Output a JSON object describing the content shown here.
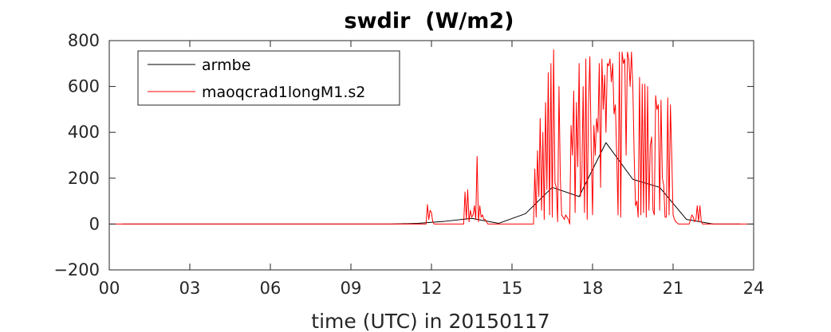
{
  "chart_data": {
    "type": "line",
    "title": "swdir  (W/m2)",
    "xlabel": "time (UTC) in 20150117",
    "ylabel": "",
    "xlim": [
      0,
      24
    ],
    "ylim": [
      -200,
      800
    ],
    "xticks": [
      0,
      3,
      6,
      9,
      12,
      15,
      18,
      21,
      24
    ],
    "xtick_labels": [
      "00",
      "03",
      "06",
      "09",
      "12",
      "15",
      "18",
      "21",
      "24"
    ],
    "yticks": [
      -200,
      0,
      200,
      400,
      600,
      800
    ],
    "ytick_labels": [
      "−200",
      "0",
      "200",
      "400",
      "600",
      "800"
    ],
    "grid": false,
    "legend_position": "top-left",
    "series": [
      {
        "name": "armbe",
        "color": "#000000",
        "x": [
          0.5,
          1.5,
          2.5,
          3.5,
          4.5,
          5.5,
          6.5,
          7.5,
          8.5,
          9.5,
          10.5,
          11.5,
          12.5,
          13.5,
          14.5,
          15.5,
          16.5,
          17.5,
          18.5,
          19.5,
          20.5,
          21.5,
          22.5,
          23.5
        ],
        "y": [
          0,
          0,
          0,
          0,
          0,
          0,
          0,
          0,
          0,
          0,
          0,
          3,
          12,
          25,
          3,
          45,
          160,
          120,
          355,
          195,
          160,
          20,
          0,
          0
        ]
      },
      {
        "name": "maoqcrad1longM1.s2",
        "color": "#ff0000",
        "x": [
          0,
          11.8,
          11.85,
          11.9,
          11.95,
          12.0,
          12.05,
          12.1,
          12.2,
          13.2,
          13.25,
          13.3,
          13.35,
          13.4,
          13.45,
          13.5,
          13.55,
          13.6,
          13.65,
          13.7,
          13.75,
          13.8,
          13.85,
          13.9,
          13.95,
          14.0,
          14.1,
          14.3,
          15.5,
          15.8,
          15.85,
          15.9,
          15.95,
          16.0,
          16.05,
          16.1,
          16.15,
          16.2,
          16.25,
          16.3,
          16.35,
          16.4,
          16.45,
          16.5,
          16.55,
          16.6,
          16.65,
          16.7,
          16.75,
          16.8,
          16.85,
          16.9,
          16.95,
          17.0,
          17.05,
          17.1,
          17.15,
          17.2,
          17.25,
          17.3,
          17.35,
          17.4,
          17.45,
          17.5,
          17.55,
          17.6,
          17.65,
          17.7,
          17.75,
          17.8,
          17.85,
          17.9,
          17.95,
          18.0,
          18.05,
          18.1,
          18.15,
          18.2,
          18.25,
          18.3,
          18.35,
          18.4,
          18.45,
          18.5,
          18.55,
          18.6,
          18.65,
          18.7,
          18.75,
          18.8,
          18.85,
          18.9,
          18.95,
          19.0,
          19.05,
          19.1,
          19.15,
          19.2,
          19.25,
          19.3,
          19.35,
          19.4,
          19.45,
          19.5,
          19.55,
          19.6,
          19.65,
          19.7,
          19.75,
          19.8,
          19.85,
          19.9,
          19.95,
          20.0,
          20.05,
          20.1,
          20.15,
          20.2,
          20.25,
          20.3,
          20.35,
          20.4,
          20.45,
          20.5,
          20.55,
          20.6,
          20.65,
          20.7,
          20.75,
          20.8,
          20.85,
          20.9,
          20.95,
          21.0,
          21.05,
          21.1,
          21.2,
          21.5,
          21.6,
          21.65,
          21.7,
          21.75,
          21.8,
          21.85,
          21.9,
          21.95,
          22.0,
          22.05,
          22.1,
          22.2,
          22.5,
          24.0
        ],
        "y": [
          0,
          0,
          85,
          20,
          60,
          50,
          10,
          0,
          0,
          0,
          140,
          20,
          150,
          10,
          60,
          30,
          40,
          80,
          20,
          295,
          10,
          80,
          30,
          40,
          20,
          20,
          0,
          0,
          0,
          0,
          240,
          30,
          320,
          120,
          460,
          60,
          400,
          20,
          530,
          150,
          660,
          40,
          700,
          30,
          760,
          180,
          160,
          10,
          600,
          200,
          40,
          30,
          20,
          40,
          30,
          20,
          0,
          430,
          300,
          580,
          50,
          530,
          250,
          700,
          120,
          200,
          600,
          50,
          720,
          20,
          520,
          730,
          330,
          40,
          430,
          300,
          460,
          400,
          700,
          160,
          720,
          500,
          650,
          400,
          700,
          690,
          720,
          620,
          700,
          480,
          520,
          300,
          40,
          750,
          30,
          750,
          700,
          720,
          300,
          750,
          720,
          600,
          750,
          600,
          300,
          80,
          100,
          30,
          640,
          40,
          610,
          50,
          610,
          30,
          600,
          60,
          340,
          380,
          60,
          40,
          560,
          500,
          520,
          60,
          540,
          200,
          170,
          30,
          30,
          550,
          40,
          520,
          300,
          40,
          20,
          10,
          0,
          0,
          0,
          20,
          40,
          30,
          10,
          20,
          80,
          10,
          80,
          10,
          0,
          0,
          0,
          0
        ]
      }
    ]
  }
}
